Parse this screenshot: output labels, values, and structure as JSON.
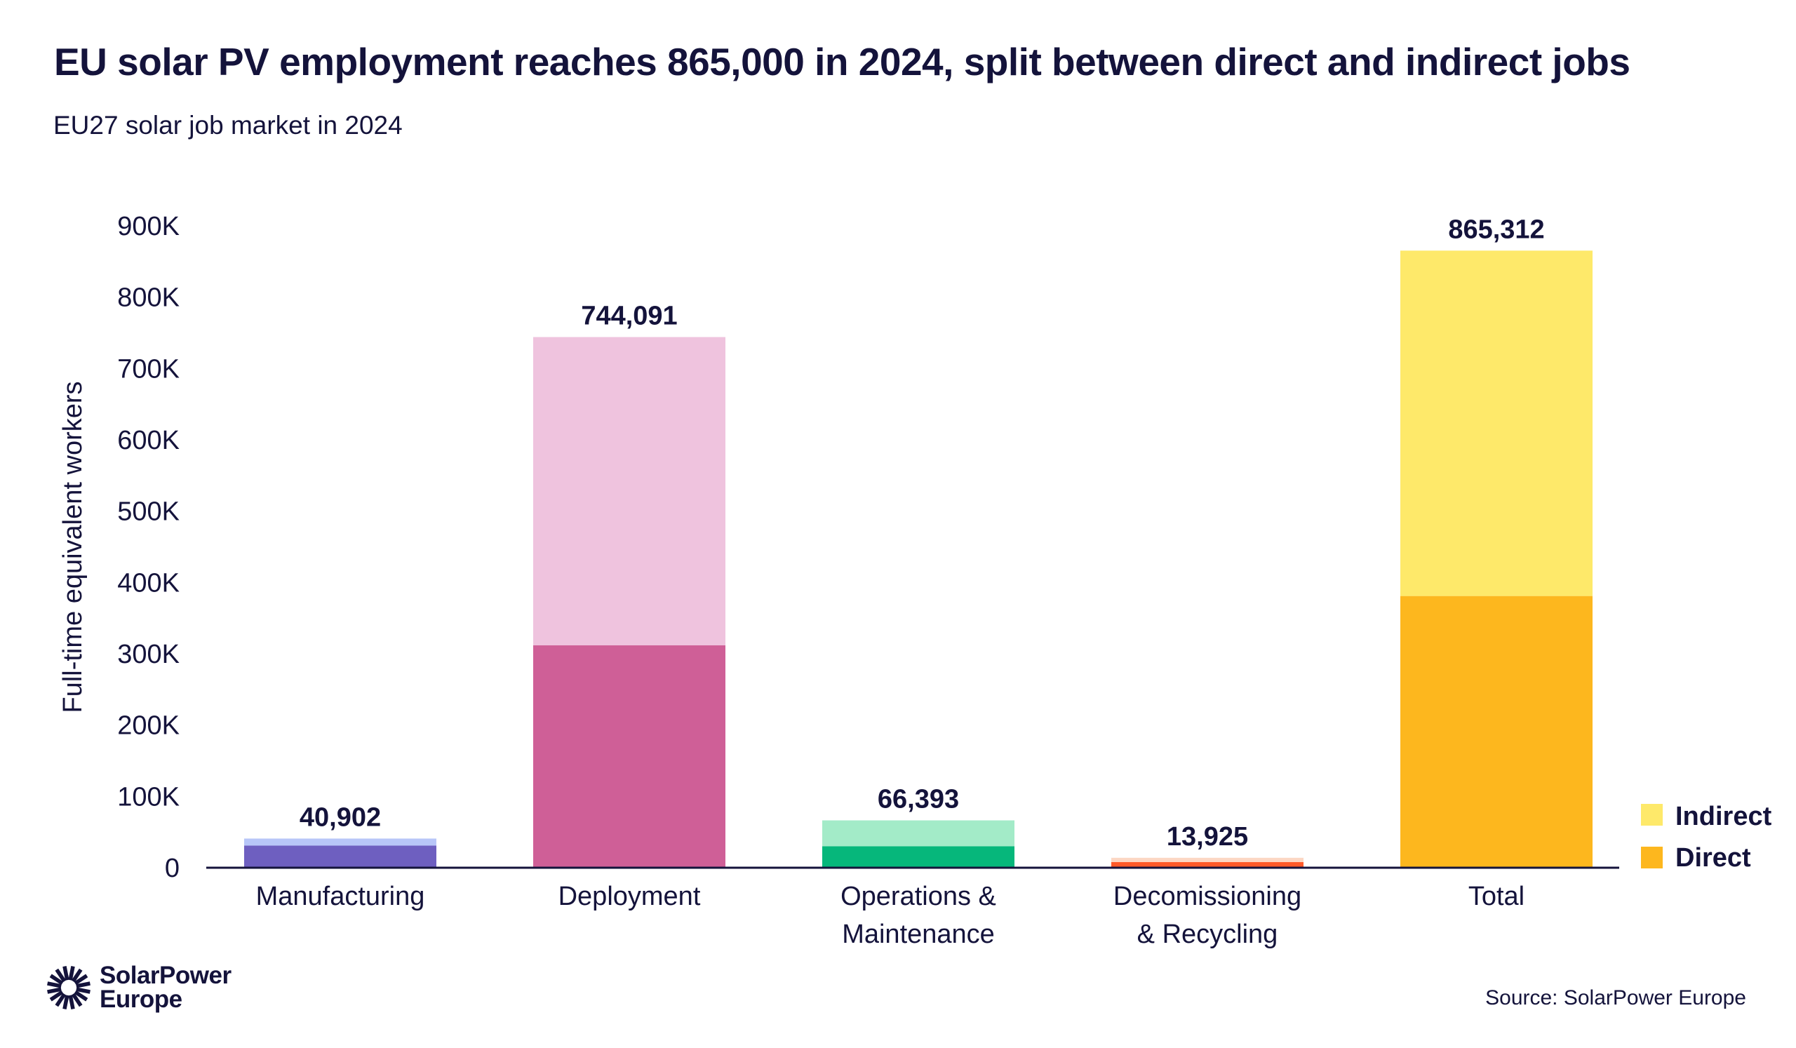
{
  "title": "EU solar PV employment reaches 865,000 in 2024, split between direct and indirect jobs",
  "subtitle": "EU27 solar job market in 2024",
  "source": "Source: SolarPower Europe",
  "logo": {
    "line1": "SolarPower",
    "line2": "Europe"
  },
  "colors": {
    "text": "#14133b",
    "axis": "#14133b"
  },
  "chart_data": {
    "type": "bar",
    "stacked": true,
    "title": "EU solar PV employment reaches 865,000 in 2024, split between direct and indirect jobs",
    "subtitle": "EU27 solar job market in 2024",
    "xlabel": "",
    "ylabel": "Full-time equivalent workers",
    "ylim": [
      0,
      900000
    ],
    "yticks": [
      0,
      100000,
      200000,
      300000,
      400000,
      500000,
      600000,
      700000,
      800000,
      900000
    ],
    "ytick_labels": [
      "0",
      "100K",
      "200K",
      "300K",
      "400K",
      "500K",
      "600K",
      "700K",
      "800K",
      "900K"
    ],
    "grid": false,
    "legend_position": "right",
    "legend": [
      "Indirect",
      "Direct"
    ],
    "categories": [
      [
        "Manufacturing"
      ],
      [
        "Deployment"
      ],
      [
        "Operations &",
        "Maintenance"
      ],
      [
        "Decomissioning",
        "& Recycling"
      ],
      [
        "Total"
      ]
    ],
    "totals": [
      40902,
      744091,
      66393,
      13925,
      865312
    ],
    "total_labels": [
      "40,902",
      "744,091",
      "66,393",
      "13,925",
      "865,312"
    ],
    "series": [
      {
        "name": "Direct",
        "values": [
          31000,
          312000,
          30000,
          8000,
          381000
        ]
      },
      {
        "name": "Indirect",
        "values": [
          9902,
          432091,
          36393,
          5925,
          484312
        ]
      }
    ],
    "bar_colors": {
      "direct": [
        "#6e5fc0",
        "#cf5f97",
        "#06b77b",
        "#ff5a2a",
        "#fdb71e"
      ],
      "indirect": [
        "#b8c6f8",
        "#efc3de",
        "#a3ebc8",
        "#fcd7c4",
        "#fee96a"
      ]
    },
    "legend_colors": {
      "Indirect": "#fee96a",
      "Direct": "#fdb71e"
    }
  }
}
